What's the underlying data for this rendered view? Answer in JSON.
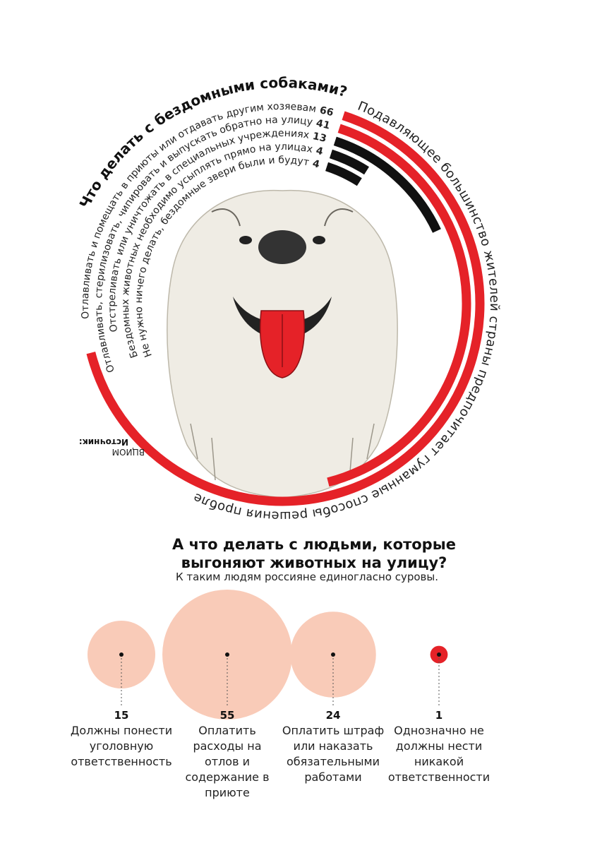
{
  "chart_data": [
    {
      "type": "radial-bar",
      "title": "Что делать с бездомными собаками?",
      "categories": [
        "Отлавливать и помещать в приюты или отдавать другим хозяевам",
        "Отлавливать, стерилизовать, чипировать и выпускать обратно на улицу",
        "Отстреливать или уничтожать в специальных учреждениях",
        "Бездомных животных необходимо усыплять прямо на улицах",
        "Не нужно ничего делать, бездомные звери были и будут"
      ],
      "values": [
        66,
        41,
        13,
        4,
        4
      ],
      "colors": [
        "#e52228",
        "#e52228",
        "#111111",
        "#111111",
        "#111111"
      ],
      "annotation": "Подавляющее большинство жителей страны предпочитает гуманные способы решения проблемы.",
      "source_label": "Источник:",
      "source": "ВЦИОМ"
    },
    {
      "type": "bubble",
      "title": "А что делать с людьми, которые выгоняют животных на улицу?",
      "subtitle": "К таким людям россияне единогласно суровы.",
      "categories": [
        "Должны понести уголовную ответственность",
        "Оплатить расходы на отлов и содержание в приюте",
        "Оплатить штраф или наказать обязательными работами",
        "Однозначно не должны нести никакой ответственности"
      ],
      "values": [
        15,
        55,
        24,
        1
      ],
      "colors": [
        "#f9cbb8",
        "#f9cbb8",
        "#f9cbb8",
        "#e52228"
      ]
    }
  ]
}
